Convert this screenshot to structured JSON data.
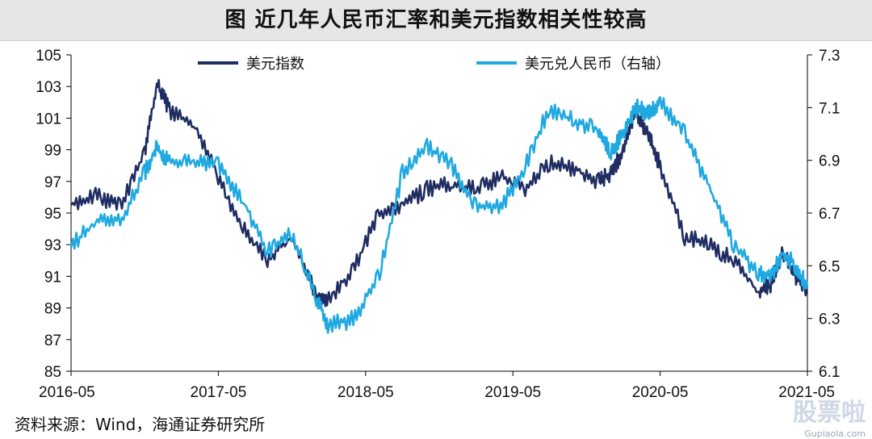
{
  "header": {
    "title": "图 近几年人民币汇率和美元指数相关性较高"
  },
  "footer": {
    "source": "资料来源：Wind，海通证券研究所"
  },
  "watermark": {
    "text": "股票啦",
    "url": "Gupiaola.com"
  },
  "colors": {
    "usd_index": "#1f2d62",
    "usdcny": "#1fa9e0",
    "grid": "#000000"
  },
  "chart_data": {
    "type": "line",
    "title": "图 近几年人民币汇率和美元指数相关性较高",
    "x_ticks": [
      "2016-05",
      "2017-05",
      "2018-05",
      "2019-05",
      "2020-05",
      "2021-05"
    ],
    "y_left": {
      "ticks": [
        "105",
        "103",
        "101",
        "99",
        "97",
        "95",
        "93",
        "91",
        "89",
        "87",
        "85"
      ],
      "range": [
        85,
        105
      ]
    },
    "y_right": {
      "ticks": [
        "7.3",
        "7.1",
        "6.9",
        "6.7",
        "6.5",
        "6.3",
        "6.1"
      ],
      "range": [
        6.1,
        7.3
      ]
    },
    "legend_position": "top",
    "grid": false,
    "series": [
      {
        "name": "美元指数",
        "axis": "left",
        "x": [
          "2016-05",
          "2016-07",
          "2016-09",
          "2016-11",
          "2016-12",
          "2017-01",
          "2017-03",
          "2017-05",
          "2017-07",
          "2017-09",
          "2017-11",
          "2018-01",
          "2018-02",
          "2018-04",
          "2018-06",
          "2018-08",
          "2018-10",
          "2018-12",
          "2019-02",
          "2019-04",
          "2019-06",
          "2019-08",
          "2019-10",
          "2019-12",
          "2020-01",
          "2020-02",
          "2020-03",
          "2020-04",
          "2020-05",
          "2020-07",
          "2020-09",
          "2020-11",
          "2021-01",
          "2021-02",
          "2021-03",
          "2021-04",
          "2021-05"
        ],
        "values": [
          95.5,
          96.2,
          95.4,
          98.8,
          103.2,
          101.5,
          100.5,
          97.3,
          94.0,
          92.0,
          93.5,
          89.7,
          89.5,
          91.5,
          94.8,
          95.5,
          96.5,
          96.8,
          96.5,
          97.3,
          96.6,
          98.2,
          97.8,
          97.0,
          97.5,
          99.0,
          101.5,
          100.0,
          98.0,
          93.5,
          93.0,
          92.0,
          90.0,
          90.5,
          92.5,
          91.0,
          90.0
        ]
      },
      {
        "name": "美元兑人民币（右轴）",
        "axis": "right",
        "x": [
          "2016-05",
          "2016-07",
          "2016-09",
          "2016-11",
          "2016-12",
          "2017-01",
          "2017-03",
          "2017-05",
          "2017-07",
          "2017-09",
          "2017-11",
          "2018-01",
          "2018-02",
          "2018-04",
          "2018-06",
          "2018-08",
          "2018-10",
          "2018-12",
          "2019-02",
          "2019-04",
          "2019-06",
          "2019-08",
          "2019-10",
          "2019-12",
          "2020-01",
          "2020-02",
          "2020-03",
          "2020-04",
          "2020-05",
          "2020-07",
          "2020-09",
          "2020-11",
          "2021-01",
          "2021-02",
          "2021-03",
          "2021-04",
          "2021-05"
        ],
        "values": [
          6.57,
          6.67,
          6.67,
          6.85,
          6.95,
          6.89,
          6.89,
          6.88,
          6.75,
          6.55,
          6.62,
          6.38,
          6.27,
          6.3,
          6.45,
          6.85,
          6.95,
          6.88,
          6.72,
          6.72,
          6.88,
          7.1,
          7.05,
          7.02,
          6.93,
          7.0,
          7.1,
          7.08,
          7.12,
          7.0,
          6.8,
          6.58,
          6.47,
          6.46,
          6.55,
          6.5,
          6.42
        ]
      }
    ]
  }
}
